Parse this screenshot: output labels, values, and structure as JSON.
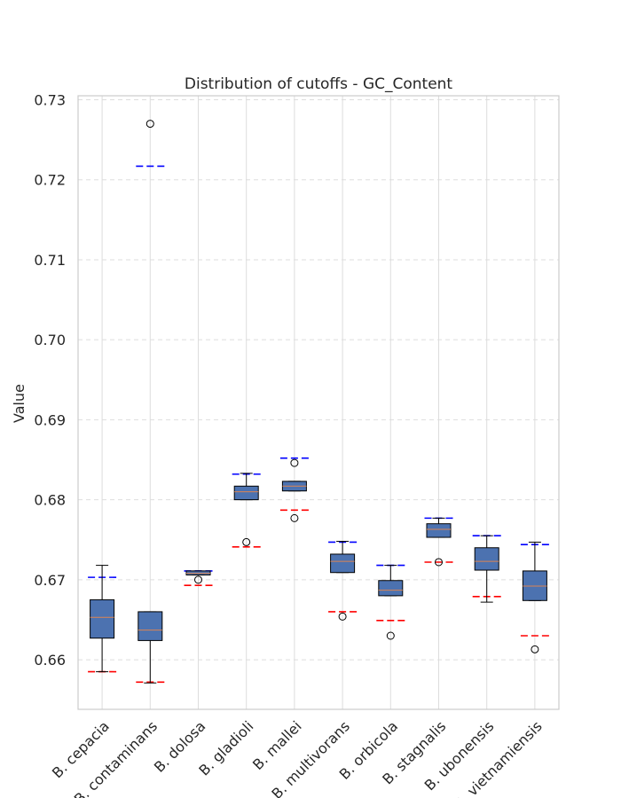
{
  "chart_data": {
    "type": "box",
    "title": "Distribution of cutoffs - GC_Content",
    "xlabel": "",
    "ylabel": "Value",
    "ylim": [
      0.6538,
      0.7305
    ],
    "yticks": [
      0.66,
      0.67,
      0.68,
      0.69,
      0.7,
      0.71,
      0.72,
      0.73
    ],
    "ytick_labels": [
      "0.66",
      "0.67",
      "0.68",
      "0.69",
      "0.70",
      "0.71",
      "0.72",
      "0.73"
    ],
    "grid": true,
    "colors": {
      "box_fill": "#4c72b0",
      "median": "#dd8452",
      "upper_ref": "#0000ff",
      "lower_ref": "#ff0000",
      "grid": "#dddddd",
      "spine": "#cccccc"
    },
    "categories": [
      "B. cepacia",
      "B. contaminans",
      "B. dolosa",
      "B. gladioli",
      "B. mallei",
      "B. multivorans",
      "B. orbicola",
      "B. stagnalis",
      "B. ubonensis",
      "B. vietnamiensis"
    ],
    "boxes": [
      {
        "whisker_low": 0.6585,
        "q1": 0.6627,
        "median": 0.6653,
        "q3": 0.6675,
        "whisker_high": 0.6718,
        "outliers": [],
        "upper_ref": 0.6703,
        "lower_ref": 0.6585
      },
      {
        "whisker_low": 0.6571,
        "q1": 0.6624,
        "median": 0.6637,
        "q3": 0.666,
        "whisker_high": 0.666,
        "outliers": [
          0.727
        ],
        "upper_ref": 0.7217,
        "lower_ref": 0.6572
      },
      {
        "whisker_low": 0.6706,
        "q1": 0.6706,
        "median": 0.6708,
        "q3": 0.6711,
        "whisker_high": 0.6711,
        "outliers": [
          0.67
        ],
        "upper_ref": 0.6711,
        "lower_ref": 0.6693
      },
      {
        "whisker_low": 0.68,
        "q1": 0.68,
        "median": 0.681,
        "q3": 0.6817,
        "whisker_high": 0.6833,
        "outliers": [
          0.6747
        ],
        "upper_ref": 0.6832,
        "lower_ref": 0.6741
      },
      {
        "whisker_low": 0.6811,
        "q1": 0.6811,
        "median": 0.6817,
        "q3": 0.6823,
        "whisker_high": 0.6823,
        "outliers": [
          0.6846,
          0.6777
        ],
        "upper_ref": 0.6852,
        "lower_ref": 0.6787
      },
      {
        "whisker_low": 0.6709,
        "q1": 0.6709,
        "median": 0.6723,
        "q3": 0.6732,
        "whisker_high": 0.6748,
        "outliers": [
          0.6654
        ],
        "upper_ref": 0.6747,
        "lower_ref": 0.666
      },
      {
        "whisker_low": 0.668,
        "q1": 0.668,
        "median": 0.6687,
        "q3": 0.6699,
        "whisker_high": 0.6718,
        "outliers": [
          0.663
        ],
        "upper_ref": 0.6718,
        "lower_ref": 0.6649
      },
      {
        "whisker_low": 0.6753,
        "q1": 0.6753,
        "median": 0.6763,
        "q3": 0.677,
        "whisker_high": 0.6777,
        "outliers": [
          0.6722
        ],
        "upper_ref": 0.6777,
        "lower_ref": 0.6722
      },
      {
        "whisker_low": 0.6672,
        "q1": 0.6712,
        "median": 0.6723,
        "q3": 0.674,
        "whisker_high": 0.6755,
        "outliers": [],
        "upper_ref": 0.6755,
        "lower_ref": 0.6679
      },
      {
        "whisker_low": 0.6674,
        "q1": 0.6674,
        "median": 0.6692,
        "q3": 0.6711,
        "whisker_high": 0.6747,
        "outliers": [
          0.6613
        ],
        "upper_ref": 0.6744,
        "lower_ref": 0.663
      }
    ]
  }
}
